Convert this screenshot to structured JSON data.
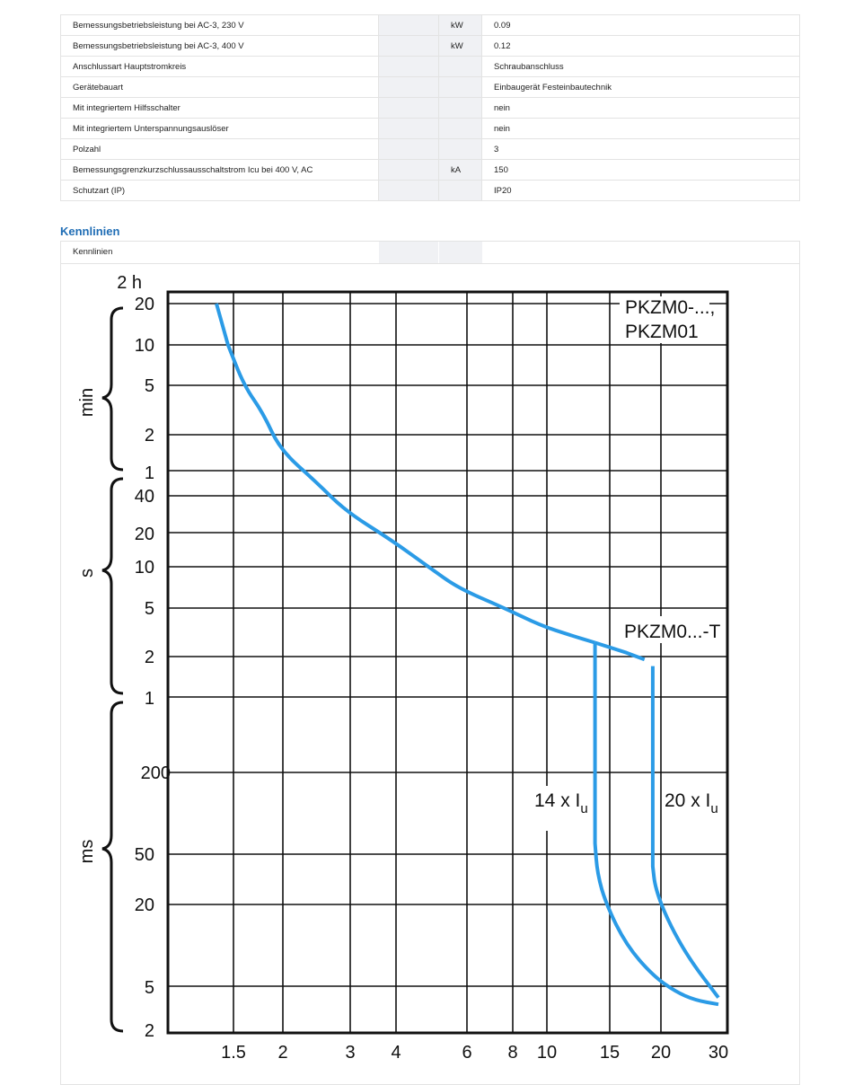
{
  "specs": [
    {
      "label": "Bemessungsbetriebsleistung bei AC-3, 230 V",
      "unit": "kW",
      "value": "0.09"
    },
    {
      "label": "Bemessungsbetriebsleistung bei AC-3, 400 V",
      "unit": "kW",
      "value": "0.12"
    },
    {
      "label": "Anschlussart Hauptstromkreis",
      "unit": "",
      "value": "Schraubanschluss"
    },
    {
      "label": "Gerätebauart",
      "unit": "",
      "value": "Einbaugerät Festeinbautechnik"
    },
    {
      "label": "Mit integriertem Hilfsschalter",
      "unit": "",
      "value": "nein"
    },
    {
      "label": "Mit integriertem Unterspannungsauslöser",
      "unit": "",
      "value": "nein"
    },
    {
      "label": "Polzahl",
      "unit": "",
      "value": "3"
    },
    {
      "label": "Bemessungsgrenzkurzschlussausschaltstrom Icu bei 400 V, AC",
      "unit": "kA",
      "value": "150"
    },
    {
      "label": "Schutzart (IP)",
      "unit": "",
      "value": "IP20"
    }
  ],
  "kennlinien": {
    "section_title": "Kennlinien",
    "row_label": "Kennlinien"
  },
  "chart_data": {
    "type": "line",
    "title": "",
    "xlabel": "",
    "ylabel": "",
    "x_scale": "log",
    "y_scale": "log",
    "x_ticks": [
      "1.5",
      "2",
      "3",
      "4",
      "6",
      "8",
      "10",
      "15",
      "20",
      "30"
    ],
    "y_ticks": [
      "2 h",
      "20",
      "10",
      "5",
      "2",
      "1",
      "40",
      "20",
      "10",
      "5",
      "2",
      "1",
      "200",
      "50",
      "20",
      "5",
      "2"
    ],
    "y_groups": [
      "min",
      "s",
      "ms"
    ],
    "annotations": [
      "PKZM0-...,",
      "PKZM01",
      "PKZM0...-T",
      "14 x I",
      "u",
      "20 x I",
      "u"
    ],
    "line_color": "#2b9be6",
    "grid": true,
    "series": [
      {
        "x": [
          1.35,
          1.45,
          1.6,
          1.8,
          2,
          2.5,
          3,
          4,
          5,
          6,
          8,
          10,
          12,
          14
        ],
        "y_seconds": [
          1200,
          600,
          300,
          180,
          90,
          50,
          30,
          17,
          10,
          7,
          5,
          3.6,
          3.0,
          2.6
        ]
      },
      {
        "x": [
          14,
          14,
          14.2,
          15,
          17,
          20,
          23,
          26,
          30
        ],
        "y_seconds": [
          2.6,
          0.06,
          0.035,
          0.02,
          0.01,
          0.006,
          0.0045,
          0.0038,
          0.0035
        ]
      },
      {
        "x": [
          14,
          17,
          19
        ],
        "y_seconds": [
          2.6,
          2.15,
          1.9
        ]
      },
      {
        "x": [
          20,
          20,
          20.3,
          22,
          25,
          30
        ],
        "y_seconds": [
          1.7,
          0.04,
          0.027,
          0.015,
          0.008,
          0.004
        ]
      }
    ]
  }
}
